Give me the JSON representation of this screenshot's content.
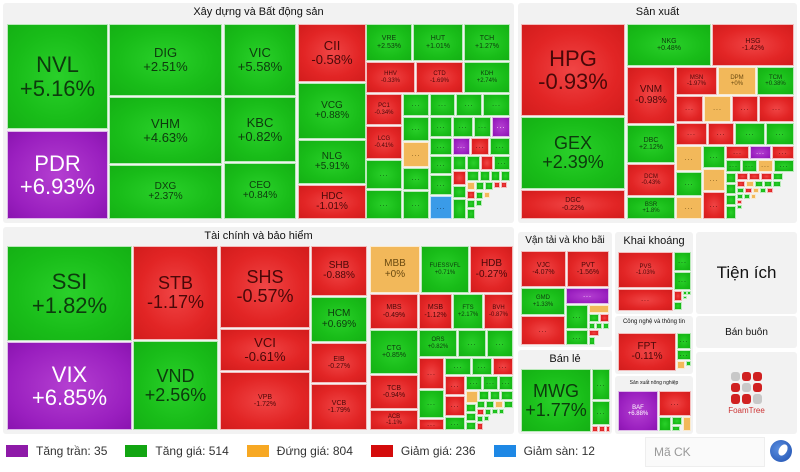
{
  "groups": {
    "real_estate": {
      "title": "Xây dựng và Bất động sản"
    },
    "manufacturing": {
      "title": "Sản xuất"
    },
    "finance": {
      "title": "Tài chính và bảo hiểm"
    },
    "transport": {
      "title": "Vận tải và kho bãi"
    },
    "mining": {
      "title": "Khai khoáng"
    },
    "utilities": {
      "title": "Tiện ích"
    },
    "it": {
      "title": "Công nghệ và thông tin"
    },
    "wholesale": {
      "title": "Bán buôn"
    },
    "retail": {
      "title": "Bán lẻ"
    },
    "agri": {
      "title": "Sản xuất nông nghiệp"
    }
  },
  "tiles": {
    "NVL": {
      "symbol": "NVL",
      "change": "+5.16%"
    },
    "PDR": {
      "symbol": "PDR",
      "change": "+6.93%"
    },
    "DIG": {
      "symbol": "DIG",
      "change": "+2.51%"
    },
    "VHM": {
      "symbol": "VHM",
      "change": "+4.63%"
    },
    "DXG": {
      "symbol": "DXG",
      "change": "+2.37%"
    },
    "VIC": {
      "symbol": "VIC",
      "change": "+5.58%"
    },
    "KBC": {
      "symbol": "KBC",
      "change": "+0.82%"
    },
    "CEO": {
      "symbol": "CEO",
      "change": "+0.84%"
    },
    "CII": {
      "symbol": "CII",
      "change": "-0.58%"
    },
    "VCG": {
      "symbol": "VCG",
      "change": "+0.88%"
    },
    "NLG": {
      "symbol": "NLG",
      "change": "+5.91%"
    },
    "HDC": {
      "symbol": "HDC",
      "change": "-1.01%"
    },
    "VRE": {
      "symbol": "VRE",
      "change": "+2.53%"
    },
    "HUT": {
      "symbol": "HUT",
      "change": "+1.01%"
    },
    "TCH": {
      "symbol": "TCH",
      "change": "+1.27%"
    },
    "HHV": {
      "symbol": "HHV",
      "change": "-0.33%"
    },
    "CTD": {
      "symbol": "CTD",
      "change": "-1.69%"
    },
    "KDH": {
      "symbol": "KDH",
      "change": "+2.74%"
    },
    "PC1": {
      "symbol": "PC1",
      "change": "-0.34%"
    },
    "LCG": {
      "symbol": "LCG",
      "change": "-0.41%"
    },
    "HPG": {
      "symbol": "HPG",
      "change": "-0.93%"
    },
    "GEX": {
      "symbol": "GEX",
      "change": "+2.39%"
    },
    "DGC": {
      "symbol": "DGC",
      "change": "-0.22%"
    },
    "NKG": {
      "symbol": "NKG",
      "change": "+0.48%"
    },
    "HSG": {
      "symbol": "HSG",
      "change": "-1.42%"
    },
    "VNM": {
      "symbol": "VNM",
      "change": "-0.98%"
    },
    "MSN": {
      "symbol": "MSN",
      "change": "-1.97%"
    },
    "DPM": {
      "symbol": "DPM",
      "change": "+0%"
    },
    "DCM": {
      "symbol": "DCM",
      "change": "-0.43%"
    },
    "DBC": {
      "symbol": "DBC",
      "change": "+2.12%"
    },
    "BSR": {
      "symbol": "BSR",
      "change": "+1.8%"
    },
    "TCM": {
      "symbol": "TCM",
      "change": "+0.38%"
    },
    "SSI": {
      "symbol": "SSI",
      "change": "+1.82%"
    },
    "VIX": {
      "symbol": "VIX",
      "change": "+6.85%"
    },
    "STB": {
      "symbol": "STB",
      "change": "-1.17%"
    },
    "VND": {
      "symbol": "VND",
      "change": "+2.56%"
    },
    "SHS": {
      "symbol": "SHS",
      "change": "-0.57%"
    },
    "VCI": {
      "symbol": "VCI",
      "change": "-0.61%"
    },
    "VPB": {
      "symbol": "VPB",
      "change": "-1.72%"
    },
    "SHB": {
      "symbol": "SHB",
      "change": "-0.88%"
    },
    "HCM": {
      "symbol": "HCM",
      "change": "+0.69%"
    },
    "EIB": {
      "symbol": "EIB",
      "change": "-0.27%"
    },
    "VCB": {
      "symbol": "VCB",
      "change": "-1.79%"
    },
    "MBB": {
      "symbol": "MBB",
      "change": "+0%"
    },
    "FUESSVFL": {
      "symbol": "FUESSVFL",
      "change": "+0.71%"
    },
    "HDB": {
      "symbol": "HDB",
      "change": "-0.27%"
    },
    "MBS": {
      "symbol": "MBS",
      "change": "-0.49%"
    },
    "MSB": {
      "symbol": "MSB",
      "change": "-1.12%"
    },
    "FTS": {
      "symbol": "FTS",
      "change": "+2.17%"
    },
    "BVH": {
      "symbol": "BVH",
      "change": "-0.87%"
    },
    "CTG": {
      "symbol": "CTG",
      "change": "+0.85%"
    },
    "ORS": {
      "symbol": "ORS",
      "change": "+0.82%"
    },
    "TCB": {
      "symbol": "TCB",
      "change": "-0.94%"
    },
    "ACB": {
      "symbol": "ACB",
      "change": "-1.1%"
    },
    "VJC": {
      "symbol": "VJC",
      "change": "-4.07%"
    },
    "PVT": {
      "symbol": "PVT",
      "change": "-1.56%"
    },
    "GMD": {
      "symbol": "GMD",
      "change": "+1.33%"
    },
    "PVS": {
      "symbol": "PVS",
      "change": "-1.03%"
    },
    "FPT": {
      "symbol": "FPT",
      "change": "-0.11%"
    },
    "MWG": {
      "symbol": "MWG",
      "change": "+1.77%"
    },
    "BAF": {
      "symbol": "BAF",
      "change": "+6.88%"
    }
  },
  "more_label": "...",
  "legend": [
    {
      "label": "Tăng trần: 35",
      "color": "#8e1aa8"
    },
    {
      "label": "Tăng giá: 514",
      "color": "#12a512"
    },
    {
      "label": "Đứng giá: 804",
      "color": "#f7a823"
    },
    {
      "label": "Giảm giá: 236",
      "color": "#d40b0b"
    },
    {
      "label": "Giảm sàn: 12",
      "color": "#1e88e5"
    }
  ],
  "search": {
    "placeholder": "Mã CK"
  },
  "branding": {
    "foamtree_label": "FoamTree"
  },
  "icons": {
    "logo": "globe-logo-icon",
    "foamtree": "foamtree-logo-icon"
  }
}
